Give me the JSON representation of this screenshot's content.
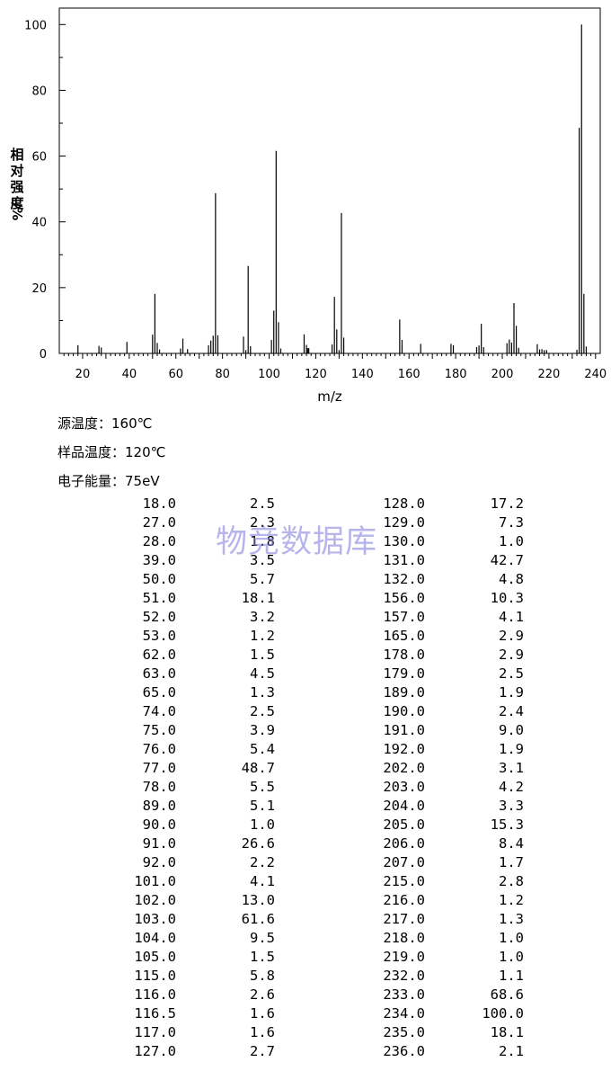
{
  "chart_data": {
    "type": "bar",
    "xlabel": "m/z",
    "ylabel": "相对强度/%",
    "xlim": [
      10,
      242
    ],
    "ylim": [
      0,
      105
    ],
    "x_ticks": [
      20,
      40,
      60,
      80,
      100,
      120,
      140,
      160,
      180,
      200,
      220,
      240
    ],
    "y_ticks": [
      0,
      20,
      40,
      60,
      80,
      100
    ],
    "grid": false,
    "x": [
      18.0,
      27.0,
      28.0,
      39.0,
      50.0,
      51.0,
      52.0,
      53.0,
      62.0,
      63.0,
      65.0,
      74.0,
      75.0,
      76.0,
      77.0,
      78.0,
      89.0,
      90.0,
      91.0,
      92.0,
      101.0,
      102.0,
      103.0,
      104.0,
      105.0,
      115.0,
      116.0,
      116.5,
      117.0,
      127.0,
      128.0,
      129.0,
      130.0,
      131.0,
      132.0,
      156.0,
      157.0,
      165.0,
      178.0,
      179.0,
      189.0,
      190.0,
      191.0,
      192.0,
      202.0,
      203.0,
      204.0,
      205.0,
      206.0,
      207.0,
      215.0,
      216.0,
      217.0,
      218.0,
      219.0,
      232.0,
      233.0,
      234.0,
      235.0,
      236.0
    ],
    "values": [
      2.5,
      2.3,
      1.8,
      3.5,
      5.7,
      18.1,
      3.2,
      1.2,
      1.5,
      4.5,
      1.3,
      2.5,
      3.9,
      5.4,
      48.7,
      5.5,
      5.1,
      1.0,
      26.6,
      2.2,
      4.1,
      13.0,
      61.6,
      9.5,
      1.5,
      5.8,
      2.6,
      1.6,
      1.6,
      2.7,
      17.2,
      7.3,
      1.0,
      42.7,
      4.8,
      10.3,
      4.1,
      2.9,
      2.9,
      2.5,
      1.9,
      2.4,
      9.0,
      1.9,
      3.1,
      4.2,
      3.3,
      15.3,
      8.4,
      1.7,
      2.8,
      1.2,
      1.3,
      1.0,
      1.0,
      1.1,
      68.6,
      100.0,
      18.1,
      2.1
    ]
  },
  "conditions": {
    "source_temp": "源温度：160℃",
    "sample_temp": "样品温度：120℃",
    "electron_energy": "电子能量：75eV"
  },
  "table": {
    "rows": [
      [
        "18.0",
        "2.5",
        "128.0",
        "17.2"
      ],
      [
        "27.0",
        "2.3",
        "129.0",
        "7.3"
      ],
      [
        "28.0",
        "1.8",
        "130.0",
        "1.0"
      ],
      [
        "39.0",
        "3.5",
        "131.0",
        "42.7"
      ],
      [
        "50.0",
        "5.7",
        "132.0",
        "4.8"
      ],
      [
        "51.0",
        "18.1",
        "156.0",
        "10.3"
      ],
      [
        "52.0",
        "3.2",
        "157.0",
        "4.1"
      ],
      [
        "53.0",
        "1.2",
        "165.0",
        "2.9"
      ],
      [
        "62.0",
        "1.5",
        "178.0",
        "2.9"
      ],
      [
        "63.0",
        "4.5",
        "179.0",
        "2.5"
      ],
      [
        "65.0",
        "1.3",
        "189.0",
        "1.9"
      ],
      [
        "74.0",
        "2.5",
        "190.0",
        "2.4"
      ],
      [
        "75.0",
        "3.9",
        "191.0",
        "9.0"
      ],
      [
        "76.0",
        "5.4",
        "192.0",
        "1.9"
      ],
      [
        "77.0",
        "48.7",
        "202.0",
        "3.1"
      ],
      [
        "78.0",
        "5.5",
        "203.0",
        "4.2"
      ],
      [
        "89.0",
        "5.1",
        "204.0",
        "3.3"
      ],
      [
        "90.0",
        "1.0",
        "205.0",
        "15.3"
      ],
      [
        "91.0",
        "26.6",
        "206.0",
        "8.4"
      ],
      [
        "92.0",
        "2.2",
        "207.0",
        "1.7"
      ],
      [
        "101.0",
        "4.1",
        "215.0",
        "2.8"
      ],
      [
        "102.0",
        "13.0",
        "216.0",
        "1.2"
      ],
      [
        "103.0",
        "61.6",
        "217.0",
        "1.3"
      ],
      [
        "104.0",
        "9.5",
        "218.0",
        "1.0"
      ],
      [
        "105.0",
        "1.5",
        "219.0",
        "1.0"
      ],
      [
        "115.0",
        "5.8",
        "232.0",
        "1.1"
      ],
      [
        "116.0",
        "2.6",
        "233.0",
        "68.6"
      ],
      [
        "116.5",
        "1.6",
        "234.0",
        "100.0"
      ],
      [
        "117.0",
        "1.6",
        "235.0",
        "18.1"
      ],
      [
        "127.0",
        "2.7",
        "236.0",
        "2.1"
      ]
    ]
  },
  "watermark": "物竞数据库"
}
